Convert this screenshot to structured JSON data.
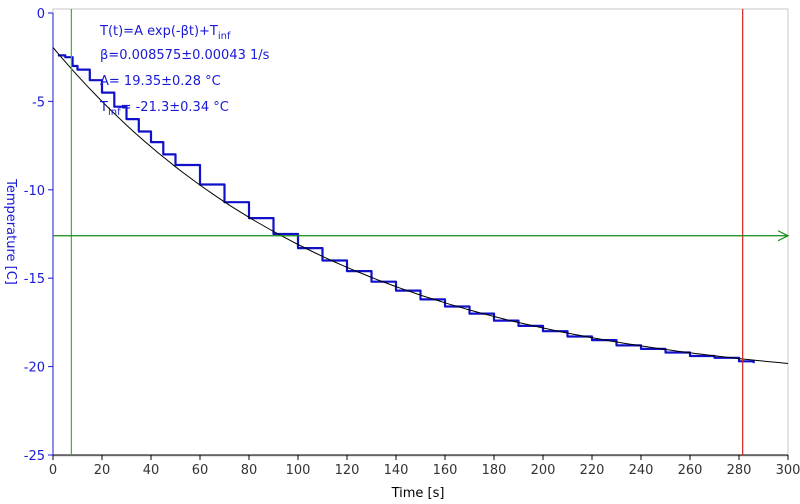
{
  "chart_data": {
    "type": "line",
    "xlabel": "Time [s]",
    "ylabel": "Temperature [C]",
    "xlim": [
      0,
      300
    ],
    "ylim": [
      -25,
      0
    ],
    "xticks": [
      0,
      20,
      40,
      60,
      80,
      100,
      120,
      140,
      160,
      180,
      200,
      220,
      240,
      260,
      280,
      300
    ],
    "yticks": [
      0,
      -5,
      -10,
      -15,
      -20,
      -25
    ],
    "grid": false,
    "series": [
      {
        "role": "measured",
        "color": "#1010c8",
        "x": [
          2,
          5,
          8,
          10,
          15,
          20,
          25,
          30,
          35,
          40,
          45,
          50,
          60,
          70,
          80,
          90,
          100,
          110,
          120,
          130,
          140,
          150,
          160,
          170,
          180,
          190,
          200,
          210,
          220,
          230,
          240,
          250,
          260,
          270,
          280,
          286
        ],
        "y": [
          -2.4,
          -2.5,
          -3.0,
          -3.2,
          -3.8,
          -4.5,
          -5.3,
          -6.0,
          -6.7,
          -7.3,
          -8.0,
          -8.6,
          -9.7,
          -10.7,
          -11.6,
          -12.5,
          -13.3,
          -14.0,
          -14.6,
          -15.2,
          -15.7,
          -16.2,
          -16.6,
          -17.0,
          -17.4,
          -17.7,
          -18.0,
          -18.3,
          -18.5,
          -18.8,
          -19.0,
          -19.2,
          -19.4,
          -19.5,
          -19.7,
          -19.8
        ]
      },
      {
        "role": "fit",
        "color": "#000000",
        "x": [
          0,
          300
        ],
        "model": "exponential",
        "A": 19.35,
        "beta": 0.008575,
        "Tinf": -21.3
      }
    ],
    "cursors": [
      {
        "axis": "x",
        "value": 7.5,
        "color": "#22c422"
      },
      {
        "axis": "x",
        "value": 281.5,
        "color": "#d42020"
      },
      {
        "axis": "y",
        "value": -12.6,
        "color": "#138a13"
      }
    ],
    "annotation": {
      "formula": "T(t)=A exp(-βt)+T",
      "formula_sub": "inf",
      "beta": "β=0.008575±0.00043 1/s",
      "A": "A= 19.35±0.28 °C",
      "tinf_main": "T",
      "tinf_sub": "inf",
      "tinf_rest": "= -21.3±0.34 °C"
    },
    "colors": {
      "axis_y": "#1a1ad6",
      "axis_x": "#000000",
      "tick": "#333333"
    }
  }
}
